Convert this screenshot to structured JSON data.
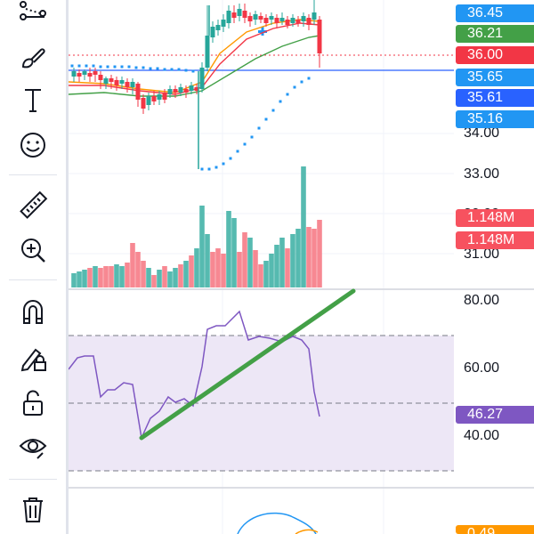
{
  "price_axis": {
    "labels": [
      "34.00",
      "33.00"
    ],
    "volume_labels": [
      "1.148M",
      "1.148M"
    ],
    "volume_partial": [
      "30.00",
      "31.00"
    ],
    "rsi_labels": [
      "80.00",
      "60.00",
      "40.00"
    ],
    "bottom_partial": "0.49"
  },
  "badges": [
    {
      "text": "36.45",
      "color": "#2196f3"
    },
    {
      "text": "36.21",
      "color": "#43a047"
    },
    {
      "text": "36.00",
      "color": "#f23645"
    },
    {
      "text": "35.65",
      "color": "#2196f3"
    },
    {
      "text": "35.61",
      "color": "#2962ff"
    },
    {
      "text": "35.16",
      "color": "#2196f3"
    }
  ],
  "rsi_value": {
    "text": "46.27",
    "color": "#7e57c2"
  },
  "volume_badge_color": "#f7525f",
  "colors": {
    "up": "#26a69a",
    "down": "#f23645",
    "ma_orange": "#ff9800",
    "ma_green": "#43a047",
    "ma_red": "#f23645",
    "sar": "#2196f3",
    "rsi_line": "#7e57c2",
    "rsi_band": "#ede7f6",
    "trendline": "#43a047",
    "lower_indicator": "#2196f3"
  },
  "toolbar": {
    "icons": [
      "trend-line-tool-icon",
      "brush-icon",
      "text-tool-icon",
      "emoji-icon",
      "ruler-icon",
      "zoom-in-icon",
      "magnet-icon",
      "lock-drawing-icon",
      "unlock-icon",
      "eye-icon",
      "trash-icon"
    ]
  }
}
